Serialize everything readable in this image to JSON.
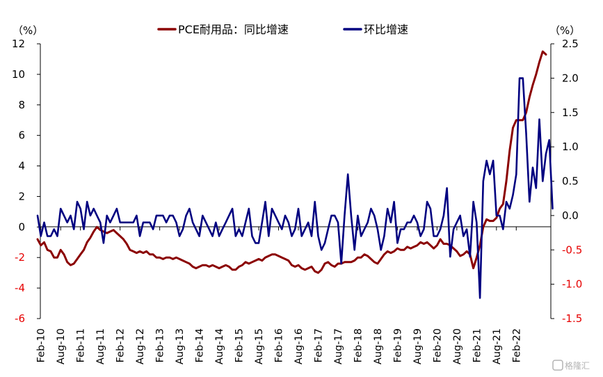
{
  "chart_data": {
    "type": "line",
    "title": "",
    "left_axis": {
      "unit_label": "（%）",
      "range": [
        -6,
        12
      ],
      "ticks": [
        12,
        10,
        8,
        6,
        4,
        2,
        0,
        -2,
        -4,
        -6
      ],
      "negative_tick_color": "#e60000"
    },
    "right_axis": {
      "unit_label": "（%）",
      "range": [
        -1.5,
        2.5
      ],
      "ticks": [
        "2.5",
        "2.0",
        "1.5",
        "1.0",
        "0.5",
        "0.0",
        "-0.5",
        "-1.0",
        "-1.5"
      ],
      "negative_tick_color": "#e60000"
    },
    "x_tick_labels": [
      "Feb-10",
      "Aug-10",
      "Feb-11",
      "Aug-11",
      "Feb-12",
      "Aug-12",
      "Feb-13",
      "Aug-13",
      "Feb-14",
      "Aug-14",
      "Feb-15",
      "Aug-15",
      "Feb-16",
      "Aug-16",
      "Feb-17",
      "Aug-17",
      "Feb-18",
      "Aug-18",
      "Feb-19",
      "Aug-19",
      "Feb-20",
      "Aug-20",
      "Feb-21",
      "Aug-21",
      "Feb-22"
    ],
    "x_start": "2010-01",
    "legend_position": "top-center",
    "series": [
      {
        "name": "PCE耐用品：同比增速",
        "axis": "left",
        "color": "#8b0000",
        "values": [
          -0.8,
          -1.2,
          -1.0,
          -1.5,
          -1.6,
          -2.0,
          -2.0,
          -1.5,
          -1.8,
          -2.3,
          -2.5,
          -2.4,
          -2.1,
          -1.8,
          -1.5,
          -1.0,
          -0.7,
          -0.3,
          0.0,
          -0.2,
          -0.3,
          -0.4,
          -0.3,
          -0.2,
          -0.4,
          -0.6,
          -0.8,
          -1.1,
          -1.5,
          -1.6,
          -1.7,
          -1.6,
          -1.7,
          -1.6,
          -1.8,
          -1.8,
          -2.0,
          -2.0,
          -2.1,
          -2.0,
          -2.0,
          -2.1,
          -2.0,
          -2.1,
          -2.2,
          -2.3,
          -2.4,
          -2.6,
          -2.7,
          -2.6,
          -2.5,
          -2.5,
          -2.6,
          -2.5,
          -2.6,
          -2.7,
          -2.6,
          -2.5,
          -2.6,
          -2.8,
          -2.8,
          -2.6,
          -2.5,
          -2.3,
          -2.4,
          -2.3,
          -2.2,
          -2.1,
          -2.2,
          -2.0,
          -1.9,
          -1.8,
          -1.8,
          -1.9,
          -2.0,
          -2.1,
          -2.2,
          -2.5,
          -2.6,
          -2.5,
          -2.7,
          -2.8,
          -2.7,
          -2.6,
          -2.9,
          -3.0,
          -2.8,
          -2.4,
          -2.3,
          -2.5,
          -2.6,
          -2.4,
          -2.4,
          -2.3,
          -2.3,
          -2.3,
          -2.2,
          -2.0,
          -2.0,
          -1.8,
          -1.9,
          -2.1,
          -2.3,
          -2.4,
          -2.1,
          -1.8,
          -1.6,
          -1.7,
          -1.6,
          -1.4,
          -1.5,
          -1.5,
          -1.3,
          -1.4,
          -1.3,
          -1.2,
          -1.0,
          -1.1,
          -1.0,
          -1.2,
          -1.4,
          -1.2,
          -0.8,
          -1.1,
          -1.1,
          -1.2,
          -1.4,
          -1.6,
          -1.9,
          -1.8,
          -1.6,
          -1.8,
          -2.7,
          -2.0,
          -1.2,
          0.0,
          0.5,
          0.4,
          0.4,
          0.6,
          1.2,
          1.5,
          3.0,
          5.0,
          6.5,
          7.0,
          7.0,
          7.0,
          7.5,
          8.5,
          9.3,
          10.0,
          10.8,
          11.5,
          11.3
        ]
      },
      {
        "name": "环比增速",
        "axis": "right",
        "color": "#000080",
        "values": [
          0.0,
          -0.3,
          -0.1,
          -0.3,
          -0.3,
          -0.2,
          -0.3,
          0.1,
          0.0,
          -0.1,
          0.0,
          -0.2,
          0.2,
          0.1,
          -0.2,
          0.2,
          0.0,
          0.1,
          0.0,
          -0.1,
          -0.4,
          0.0,
          -0.1,
          0.0,
          0.1,
          -0.1,
          -0.1,
          -0.1,
          -0.1,
          -0.1,
          0.0,
          -0.3,
          -0.1,
          -0.1,
          -0.1,
          -0.2,
          0.0,
          0.0,
          0.0,
          -0.1,
          0.0,
          0.0,
          -0.1,
          -0.3,
          -0.2,
          0.0,
          0.1,
          -0.1,
          -0.2,
          -0.3,
          0.0,
          -0.1,
          -0.2,
          -0.3,
          -0.1,
          -0.3,
          -0.2,
          -0.1,
          0.0,
          0.1,
          -0.3,
          -0.2,
          -0.3,
          -0.1,
          0.1,
          -0.3,
          -0.4,
          -0.4,
          -0.1,
          0.2,
          -0.3,
          0.1,
          0.0,
          -0.1,
          -0.2,
          0.0,
          -0.1,
          -0.3,
          -0.2,
          0.1,
          -0.3,
          -0.2,
          -0.1,
          -0.3,
          0.2,
          -0.3,
          -0.5,
          -0.4,
          -0.2,
          0.0,
          0.0,
          -0.1,
          -0.7,
          0.0,
          0.6,
          0.0,
          -0.5,
          0.0,
          -0.3,
          -0.2,
          -0.1,
          0.1,
          0.0,
          -0.2,
          -0.5,
          -0.3,
          0.1,
          -0.1,
          0.2,
          -0.4,
          -0.2,
          -0.2,
          -0.1,
          -0.1,
          0.0,
          -0.1,
          -0.3,
          -0.2,
          0.2,
          0.1,
          -0.3,
          -0.3,
          -0.2,
          0.0,
          0.4,
          -0.6,
          -0.2,
          -0.1,
          0.0,
          -0.3,
          -0.2,
          -0.6,
          0.2,
          -0.1,
          -1.2,
          0.5,
          0.8,
          0.6,
          0.8,
          0.0,
          0.0,
          -0.2,
          0.2,
          0.1,
          0.3,
          0.6,
          2.0,
          2.0,
          1.2,
          0.2,
          0.7,
          0.4,
          1.4,
          0.5,
          0.9,
          1.1,
          0.1
        ]
      }
    ]
  },
  "watermark": "格隆汇"
}
